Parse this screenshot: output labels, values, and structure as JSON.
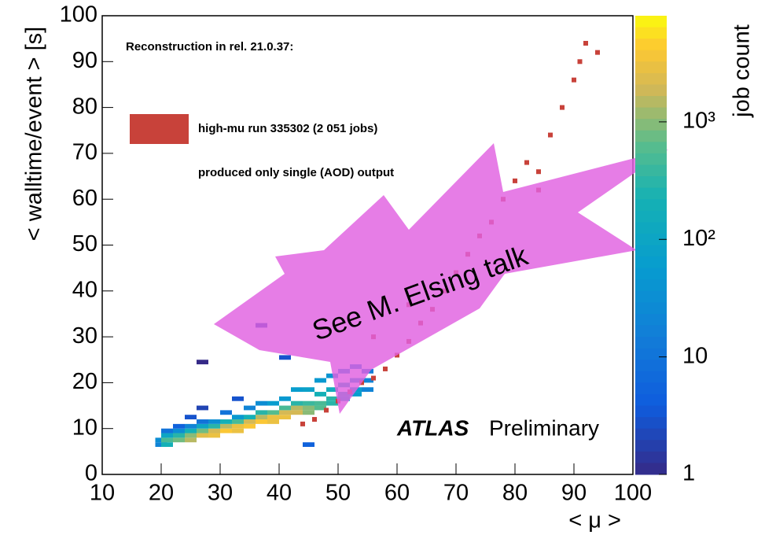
{
  "chart_data": {
    "type": "heatmap",
    "xlabel": "< μ >",
    "ylabel": "< walltime/event > [s]",
    "zlabel": "job count",
    "annotation": "Reconstruction in rel. 21.0.37:",
    "note": "produced only single (AOD) output",
    "brand": "ATLAS",
    "brand_suffix": "Preliminary",
    "callout": "See M. Elsing talk",
    "xlim": [
      10,
      100
    ],
    "xticks": [
      10,
      20,
      30,
      40,
      50,
      60,
      70,
      80,
      90,
      100
    ],
    "ylim": [
      0,
      100
    ],
    "yticks": [
      0,
      10,
      20,
      30,
      40,
      50,
      60,
      70,
      80,
      90,
      100
    ],
    "zlim": [
      1,
      8000
    ],
    "zlog": true,
    "zticks": [
      1,
      10,
      {
        "value": 100,
        "label": "10²"
      },
      {
        "value": 1000,
        "label": "10³"
      }
    ],
    "x": [
      19,
      19,
      20,
      20,
      20,
      20,
      22,
      22,
      22,
      22,
      24,
      24,
      24,
      24,
      24,
      26,
      26,
      26,
      26,
      26,
      26,
      28,
      28,
      28,
      28,
      30,
      30,
      30,
      30,
      32,
      32,
      32,
      32,
      32,
      34,
      34,
      34,
      34,
      36,
      36,
      36,
      36,
      36,
      38,
      38,
      38,
      38,
      40,
      40,
      40,
      40,
      40,
      42,
      42,
      42,
      42,
      44,
      44,
      44,
      44,
      44,
      46,
      46,
      46,
      46,
      48,
      48,
      48,
      48,
      50,
      50,
      50,
      50,
      52,
      52,
      52,
      52,
      54,
      54,
      54
    ],
    "y": [
      6,
      7,
      6,
      7,
      8,
      9,
      7,
      8,
      9,
      10,
      7,
      8,
      9,
      10,
      12,
      8,
      9,
      10,
      11,
      14,
      24,
      8,
      9,
      10,
      11,
      9,
      10,
      11,
      13,
      9,
      10,
      11,
      12,
      16,
      10,
      11,
      12,
      14,
      11,
      12,
      13,
      15,
      32,
      11,
      12,
      13,
      15,
      12,
      13,
      14,
      16,
      25,
      13,
      14,
      15,
      18,
      13,
      14,
      15,
      18,
      6,
      14,
      15,
      17,
      20,
      15,
      16,
      18,
      21,
      16,
      17,
      19,
      22,
      17,
      18,
      20,
      23,
      18,
      20,
      22
    ],
    "values": [
      20,
      30,
      200,
      500,
      100,
      10,
      800,
      300,
      30,
      5,
      1500,
      1000,
      200,
      20,
      3,
      2500,
      800,
      100,
      10,
      2,
      1,
      3000,
      2000,
      300,
      30,
      4000,
      1500,
      200,
      10,
      3000,
      3000,
      500,
      50,
      3,
      4000,
      2000,
      200,
      20,
      4000,
      1500,
      300,
      30,
      2,
      3000,
      3000,
      600,
      60,
      3000,
      2000,
      500,
      50,
      3,
      2000,
      1500,
      300,
      60,
      1000,
      1000,
      400,
      80,
      5,
      600,
      500,
      200,
      50,
      300,
      300,
      150,
      40,
      100,
      150,
      100,
      30,
      60,
      60,
      50,
      20,
      20,
      20,
      15
    ],
    "series": [
      {
        "name": "high-mu run 335302 (2 051 jobs)",
        "color": "#c8423a",
        "x": [
          44,
          46,
          48,
          50,
          52,
          54,
          56,
          58,
          60,
          62,
          64,
          66,
          68,
          70,
          72,
          74,
          76,
          78,
          80,
          82,
          84,
          86,
          88,
          90,
          91,
          92,
          94,
          84,
          62,
          56
        ],
        "y": [
          11,
          12,
          14,
          16,
          18,
          20,
          21,
          23,
          26,
          29,
          33,
          36,
          40,
          44,
          48,
          52,
          55,
          60,
          64,
          68,
          66,
          74,
          80,
          86,
          90,
          94,
          92,
          62,
          37,
          30
        ]
      }
    ]
  }
}
